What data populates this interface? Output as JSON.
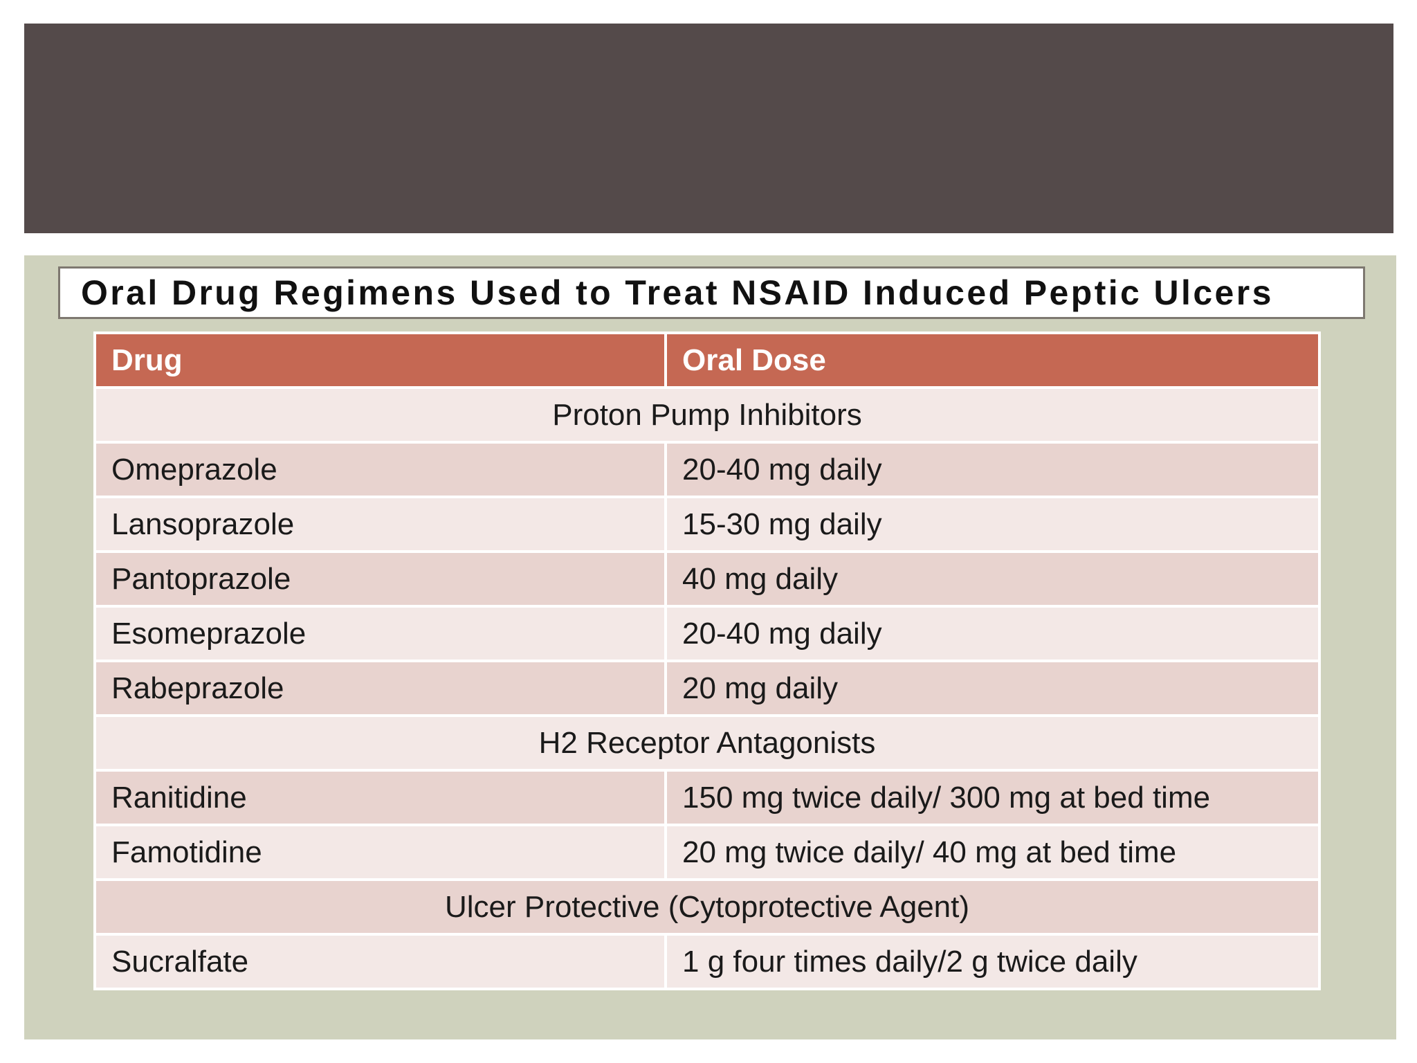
{
  "slide": {
    "title": "Oral Drug Regimens Used to Treat NSAID Induced Peptic Ulcers"
  },
  "table": {
    "headers": [
      "Drug",
      "Oral Dose"
    ],
    "sections": [
      {
        "name": "Proton Pump Inhibitors",
        "rows": [
          {
            "drug": "Omeprazole",
            "dose": "20-40 mg daily"
          },
          {
            "drug": "Lansoprazole",
            "dose": "15-30 mg daily"
          },
          {
            "drug": "Pantoprazole",
            "dose": "40 mg daily"
          },
          {
            "drug": "Esomeprazole",
            "dose": "20-40 mg daily"
          },
          {
            "drug": "Rabeprazole",
            "dose": "20 mg daily"
          }
        ]
      },
      {
        "name": "H2 Receptor Antagonists",
        "rows": [
          {
            "drug": "Ranitidine",
            "dose": "150 mg twice daily/ 300 mg at bed time"
          },
          {
            "drug": "Famotidine",
            "dose": "20 mg twice daily/ 40 mg at bed time"
          }
        ]
      },
      {
        "name": "Ulcer Protective (Cytoprotective Agent)",
        "rows": [
          {
            "drug": "Sucralfate",
            "dose": "1 g four times daily/2 g twice daily"
          }
        ]
      }
    ]
  },
  "colors": {
    "header_band": "#544a4a",
    "content_panel": "#cfd2bd",
    "table_header": "#c56853",
    "row_dark": "#e8d3cf",
    "row_light": "#f3e8e6"
  }
}
